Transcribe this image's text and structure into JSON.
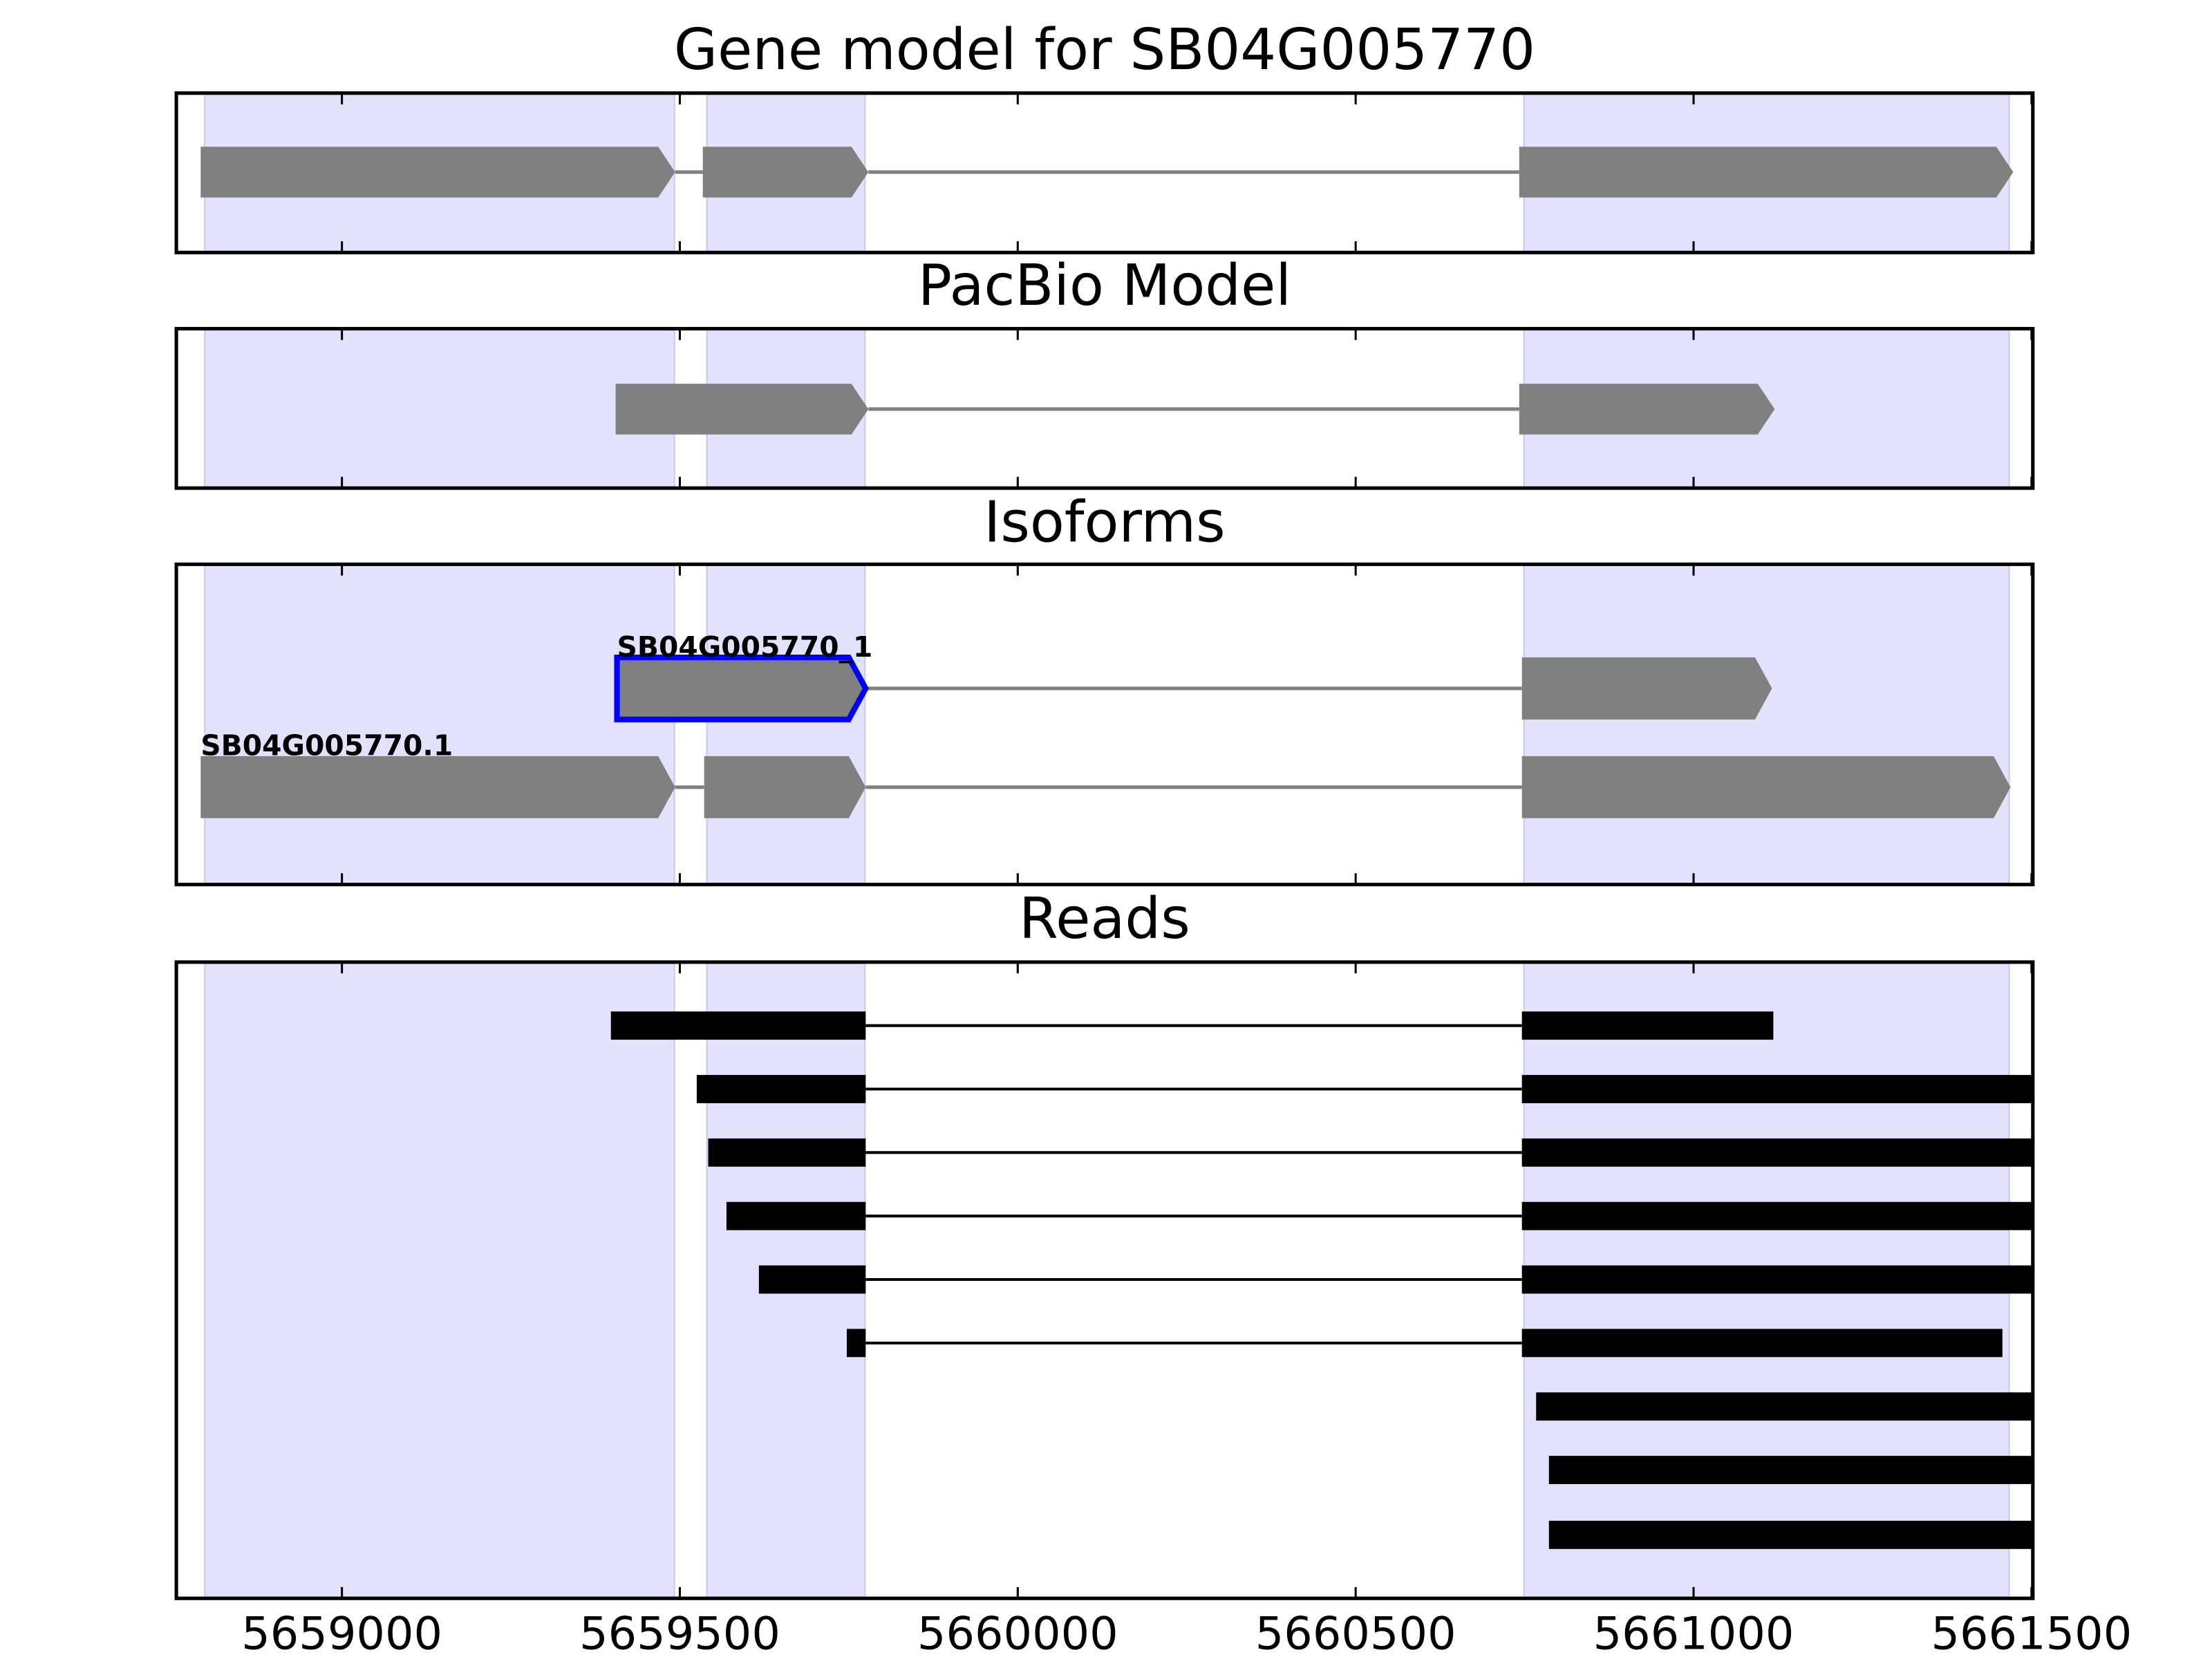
{
  "chart_data": [
    {
      "type": "gene-track",
      "title": "Gene model for SB04G005770",
      "xlim": [
        5658755,
        5661502
      ],
      "xticks": [
        5659000,
        5659500,
        5660000,
        5660500,
        5661000,
        5661500
      ],
      "xtick_labels": false,
      "regions": [
        [
          5658797,
          5659492
        ],
        [
          5659540,
          5659774
        ],
        [
          5660749,
          5661467
        ]
      ],
      "region_color": "#e2e2fc",
      "tracks": [
        {
          "color": "#808080",
          "exons": [
            [
              5658791,
              5659493
            ],
            [
              5659534,
              5659779
            ],
            [
              5660742,
              5661473
            ]
          ]
        }
      ]
    },
    {
      "type": "gene-track",
      "title": "PacBio Model",
      "xlim": [
        5658755,
        5661502
      ],
      "xticks": [
        5659000,
        5659500,
        5660000,
        5660500,
        5661000,
        5661500
      ],
      "xtick_labels": false,
      "regions": [
        [
          5658797,
          5659492
        ],
        [
          5659540,
          5659774
        ],
        [
          5660749,
          5661467
        ]
      ],
      "region_color": "#e2e2fc",
      "tracks": [
        {
          "color": "#808080",
          "exons": [
            [
              5659405,
              5659779
            ],
            [
              5660742,
              5661120
            ]
          ]
        }
      ]
    },
    {
      "type": "gene-track",
      "title": "Isoforms",
      "xlim": [
        5658755,
        5661502
      ],
      "xticks": [
        5659000,
        5659500,
        5660000,
        5660500,
        5661000,
        5661500
      ],
      "xtick_labels": false,
      "regions": [
        [
          5658797,
          5659492
        ],
        [
          5659540,
          5659774
        ],
        [
          5660749,
          5661467
        ]
      ],
      "region_color": "#e2e2fc",
      "tracks": [
        {
          "name": "SB04G005770_1",
          "color": "#808080",
          "edgecolor": "#0000ff",
          "exons": [
            [
              5659407,
              5659775
            ],
            [
              5660746,
              5661116
            ]
          ]
        },
        {
          "name": "SB04G005770.1",
          "color": "#808080",
          "exons": [
            [
              5658791,
              5659493
            ],
            [
              5659536,
              5659775
            ],
            [
              5660746,
              5661469
            ]
          ]
        }
      ]
    },
    {
      "type": "reads",
      "title": "Reads",
      "xlim": [
        5658755,
        5661502
      ],
      "xticks": [
        5659000,
        5659500,
        5660000,
        5660500,
        5661000,
        5661500
      ],
      "xtick_labels": true,
      "regions": [
        [
          5658797,
          5659492
        ],
        [
          5659540,
          5659774
        ],
        [
          5660749,
          5661467
        ]
      ],
      "region_color": "#e2e2fc",
      "tracks": [
        {
          "color": "#000000",
          "exons": [
            [
              5659398,
              5659775
            ],
            [
              5660746,
              5661118
            ]
          ]
        },
        {
          "color": "#000000",
          "exons": [
            [
              5659525,
              5659775
            ],
            [
              5660746,
              5661502
            ]
          ]
        },
        {
          "color": "#000000",
          "exons": [
            [
              5659542,
              5659775
            ],
            [
              5660746,
              5661502
            ]
          ]
        },
        {
          "color": "#000000",
          "exons": [
            [
              5659569,
              5659775
            ],
            [
              5660746,
              5661502
            ]
          ]
        },
        {
          "color": "#000000",
          "exons": [
            [
              5659617,
              5659775
            ],
            [
              5660746,
              5661502
            ]
          ]
        },
        {
          "color": "#000000",
          "exons": [
            [
              5659747,
              5659775
            ],
            [
              5660746,
              5661457
            ]
          ]
        },
        {
          "color": "#000000",
          "exons": [
            [
              5660767,
              5661502
            ]
          ]
        },
        {
          "color": "#000000",
          "exons": [
            [
              5660786,
              5661502
            ]
          ]
        },
        {
          "color": "#000000",
          "exons": [
            [
              5660786,
              5661502
            ]
          ]
        }
      ]
    }
  ]
}
